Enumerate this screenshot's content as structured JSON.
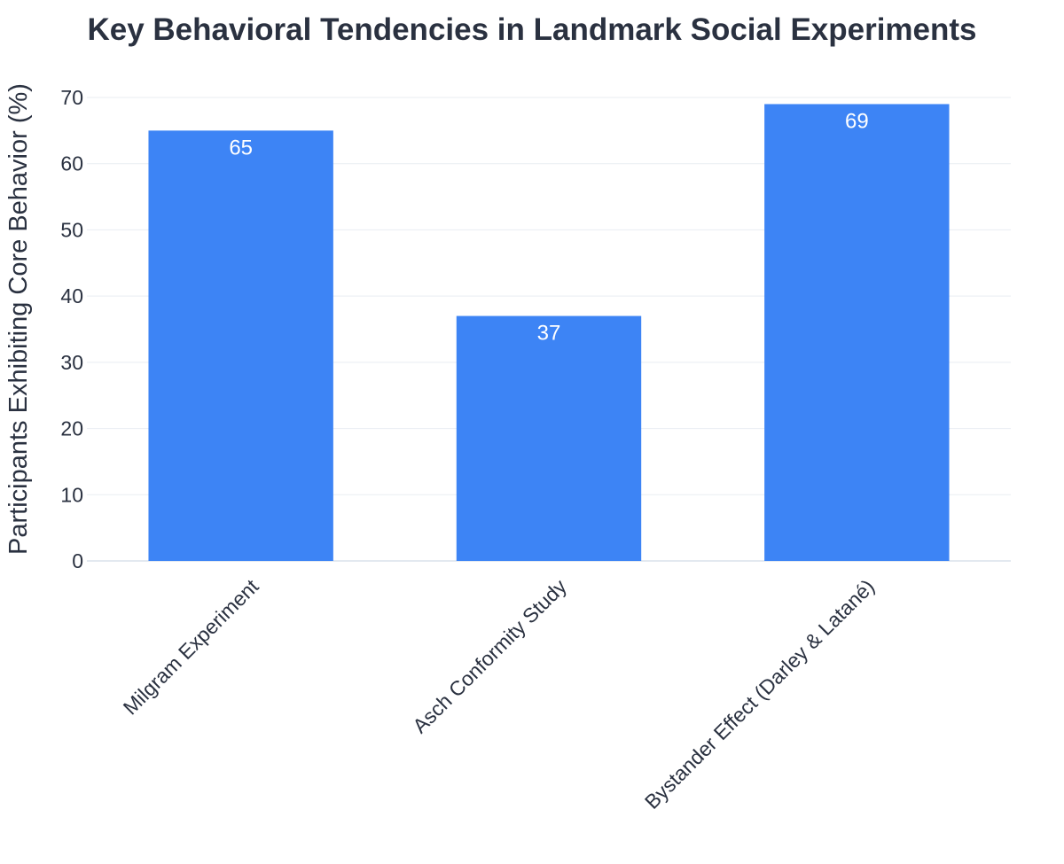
{
  "chart_data": {
    "type": "bar",
    "title": "Key Behavioral Tendencies in Landmark Social Experiments",
    "xlabel": "",
    "ylabel": "Participants Exhibiting Core Behavior (%)",
    "categories": [
      "Milgram Experiment",
      "Asch Conformity Study",
      "Bystander Effect (Darley & Latané)"
    ],
    "values": [
      65,
      37,
      69
    ],
    "ylim": [
      0,
      70
    ],
    "yticks": [
      0,
      10,
      20,
      30,
      40,
      50,
      60,
      70
    ],
    "grid": true,
    "bar_labels": [
      "65",
      "37",
      "69"
    ],
    "colors": {
      "bar": "#3d84f5",
      "text": "#2a3140",
      "grid": "#e9edf2"
    }
  }
}
